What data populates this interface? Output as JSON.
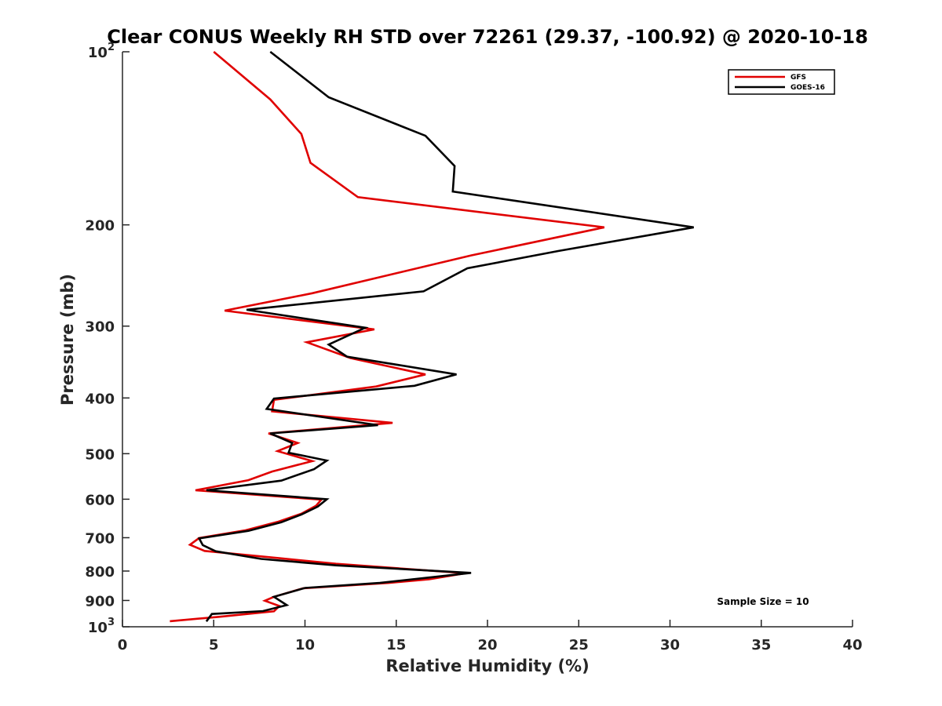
{
  "chart_data": {
    "type": "line",
    "title": "Clear CONUS Weekly RH STD over 72261 (29.37, -100.92) @ 2020-10-18",
    "xlabel": "Relative Humidity (%)",
    "ylabel": "Pressure (mb)",
    "xlim": [
      0,
      40
    ],
    "ylim": [
      100,
      1000
    ],
    "y_scale": "log",
    "y_reversed": true,
    "x_ticks": [
      "0",
      "5",
      "10",
      "15",
      "20",
      "25",
      "30",
      "35",
      "40"
    ],
    "y_ticks": [
      {
        "value": 100,
        "base": "10",
        "exp": "2"
      },
      {
        "value": 200,
        "base": "200",
        "exp": ""
      },
      {
        "value": 300,
        "base": "300",
        "exp": ""
      },
      {
        "value": 400,
        "base": "400",
        "exp": ""
      },
      {
        "value": 500,
        "base": "500",
        "exp": ""
      },
      {
        "value": 600,
        "base": "600",
        "exp": ""
      },
      {
        "value": 700,
        "base": "700",
        "exp": ""
      },
      {
        "value": 800,
        "base": "800",
        "exp": ""
      },
      {
        "value": 900,
        "base": "900",
        "exp": ""
      },
      {
        "value": 1000,
        "base": "10",
        "exp": "3"
      }
    ],
    "legend_position": "top-right",
    "annotation": "Sample Size = 10",
    "series": [
      {
        "name": "GFS",
        "color": "#e00000",
        "points": [
          [
            5.0,
            100
          ],
          [
            8.1,
            121
          ],
          [
            9.8,
            139
          ],
          [
            10.3,
            156
          ],
          [
            12.9,
            179
          ],
          [
            26.4,
            202
          ],
          [
            19.1,
            226
          ],
          [
            10.4,
            263
          ],
          [
            5.6,
            282
          ],
          [
            13.8,
            304
          ],
          [
            10.1,
            320
          ],
          [
            12.5,
            341
          ],
          [
            16.6,
            364
          ],
          [
            13.9,
            382
          ],
          [
            8.3,
            403
          ],
          [
            8.2,
            422
          ],
          [
            14.8,
            442
          ],
          [
            8.0,
            461
          ],
          [
            9.6,
            479
          ],
          [
            8.5,
            495
          ],
          [
            10.4,
            515
          ],
          [
            8.2,
            537
          ],
          [
            6.9,
            556
          ],
          [
            4.0,
            579
          ],
          [
            10.9,
            601
          ],
          [
            10.6,
            616
          ],
          [
            9.8,
            636
          ],
          [
            8.5,
            657
          ],
          [
            6.7,
            680
          ],
          [
            4.2,
            701
          ],
          [
            3.7,
            720
          ],
          [
            4.5,
            738
          ],
          [
            8.6,
            760
          ],
          [
            11.7,
            777
          ],
          [
            18.8,
            807
          ],
          [
            16.8,
            827
          ],
          [
            14.6,
            839
          ],
          [
            9.9,
            857
          ],
          [
            8.3,
            887
          ],
          [
            7.8,
            901
          ],
          [
            8.6,
            920
          ],
          [
            8.3,
            940
          ],
          [
            5.3,
            961
          ],
          [
            2.6,
            978
          ]
        ]
      },
      {
        "name": "GOES-16",
        "color": "#000000",
        "points": [
          [
            8.1,
            100
          ],
          [
            11.3,
            120
          ],
          [
            16.6,
            140
          ],
          [
            18.2,
            158
          ],
          [
            18.1,
            175
          ],
          [
            31.3,
            202
          ],
          [
            23.9,
            222
          ],
          [
            18.9,
            238
          ],
          [
            16.5,
            261
          ],
          [
            6.8,
            281
          ],
          [
            13.3,
            302
          ],
          [
            11.3,
            323
          ],
          [
            12.3,
            339
          ],
          [
            18.3,
            364
          ],
          [
            16.0,
            381
          ],
          [
            8.3,
            401
          ],
          [
            7.9,
            418
          ],
          [
            14.0,
            446
          ],
          [
            8.1,
            461
          ],
          [
            9.3,
            479
          ],
          [
            9.1,
            498
          ],
          [
            11.2,
            514
          ],
          [
            10.5,
            532
          ],
          [
            8.7,
            557
          ],
          [
            4.6,
            579
          ],
          [
            11.2,
            600
          ],
          [
            10.7,
            618
          ],
          [
            9.8,
            638
          ],
          [
            8.7,
            658
          ],
          [
            6.9,
            681
          ],
          [
            4.2,
            702
          ],
          [
            4.4,
            721
          ],
          [
            5.1,
            739
          ],
          [
            7.6,
            762
          ],
          [
            11.7,
            782
          ],
          [
            19.1,
            806
          ],
          [
            14.1,
            839
          ],
          [
            10.0,
            856
          ],
          [
            8.3,
            887
          ],
          [
            9.0,
            917
          ],
          [
            7.7,
            939
          ],
          [
            4.9,
            950
          ],
          [
            4.6,
            979
          ]
        ]
      }
    ]
  }
}
